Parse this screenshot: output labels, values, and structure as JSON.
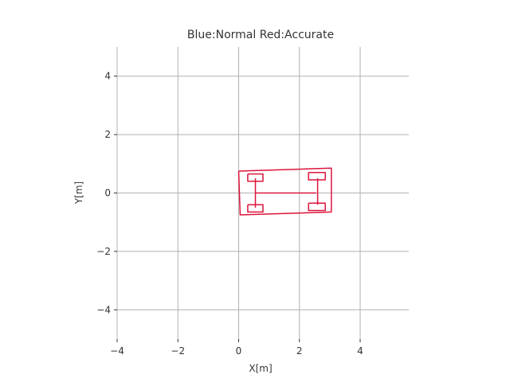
{
  "chart_data": {
    "type": "line",
    "title": "Blue:Normal Red:Accurate",
    "xlabel": "X[m]",
    "ylabel": "Y[m]",
    "xlim": [
      -4.0,
      5.6
    ],
    "ylim": [
      -5.0,
      5.0
    ],
    "xticks": [
      -4,
      -2,
      0,
      2,
      4
    ],
    "yticks": [
      -4,
      -2,
      0,
      2,
      4
    ],
    "xtick_labels": [
      "−4",
      "−2",
      "0",
      "2",
      "4"
    ],
    "ytick_labels": [
      "−4",
      "−2",
      "0",
      "2",
      "4"
    ],
    "grid": true,
    "aspect": "equal",
    "colors": {
      "accurate": "#dc143c",
      "normal": "#1f3fbf"
    },
    "series": [
      {
        "name": "Accurate",
        "color": "#dc143c",
        "outline": [
          [
            0.0,
            0.75
          ],
          [
            3.05,
            0.85
          ],
          [
            3.05,
            -0.65
          ],
          [
            0.05,
            -0.75
          ],
          [
            0.0,
            0.75
          ]
        ],
        "axles": [
          [
            [
              0.55,
              0.0
            ],
            [
              2.55,
              0.0
            ]
          ],
          [
            [
              0.55,
              0.5
            ],
            [
              0.55,
              -0.5
            ]
          ],
          [
            [
              2.6,
              0.5
            ],
            [
              2.6,
              -0.4
            ]
          ]
        ],
        "wheels": [
          [
            [
              0.3,
              0.65
            ],
            [
              0.8,
              0.65
            ],
            [
              0.8,
              0.4
            ],
            [
              0.3,
              0.4
            ],
            [
              0.3,
              0.65
            ]
          ],
          [
            [
              0.3,
              -0.4
            ],
            [
              0.8,
              -0.4
            ],
            [
              0.8,
              -0.65
            ],
            [
              0.3,
              -0.65
            ],
            [
              0.3,
              -0.4
            ]
          ],
          [
            [
              2.3,
              0.7
            ],
            [
              2.85,
              0.7
            ],
            [
              2.85,
              0.45
            ],
            [
              2.3,
              0.45
            ],
            [
              2.3,
              0.7
            ]
          ],
          [
            [
              2.3,
              -0.35
            ],
            [
              2.85,
              -0.35
            ],
            [
              2.85,
              -0.6
            ],
            [
              2.3,
              -0.6
            ],
            [
              2.3,
              -0.35
            ]
          ]
        ]
      }
    ]
  }
}
